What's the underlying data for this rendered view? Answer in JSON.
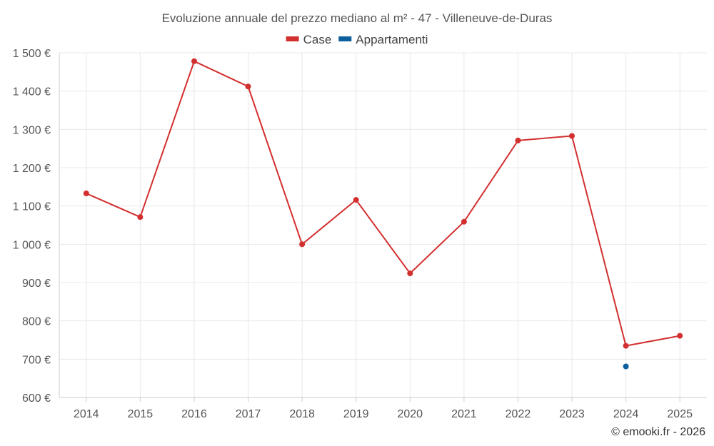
{
  "chart_data": {
    "type": "line",
    "title": "Evoluzione annuale del prezzo mediano al m² - 47 - Villeneuve-de-Duras",
    "categories": [
      "2014",
      "2015",
      "2016",
      "2017",
      "2018",
      "2019",
      "2020",
      "2021",
      "2022",
      "2023",
      "2024",
      "2025"
    ],
    "series": [
      {
        "name": "Case",
        "color": "#d32f2f",
        "values": [
          1133,
          1071,
          1478,
          1412,
          1000,
          1116,
          924,
          1059,
          1271,
          1283,
          735,
          761
        ]
      },
      {
        "name": "Appartamenti",
        "color": "#0d5f9e",
        "values": [
          null,
          null,
          null,
          null,
          null,
          null,
          null,
          null,
          null,
          null,
          681,
          null
        ]
      }
    ],
    "y_ticks": [
      "600 €",
      "700 €",
      "800 €",
      "900 €",
      "1 000 €",
      "1 100 €",
      "1 200 €",
      "1 300 €",
      "1 400 €",
      "1 500 €"
    ],
    "ylim": [
      600,
      1500
    ],
    "grid": true,
    "legend_position": "top-center"
  },
  "credit": "© emooki.fr - 2026"
}
